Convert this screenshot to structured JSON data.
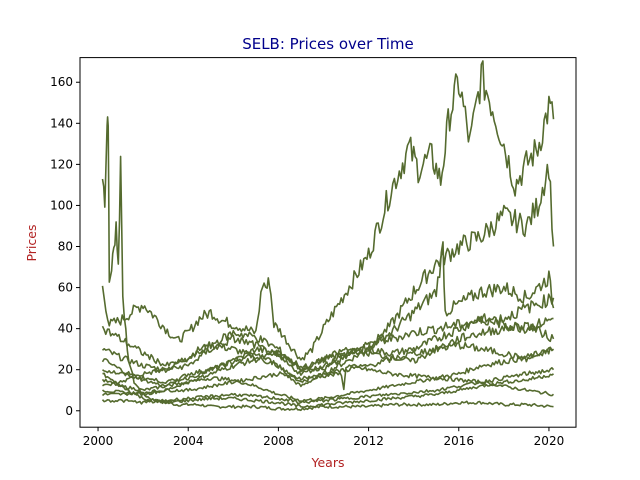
{
  "chart_data": {
    "type": "line",
    "title": "SELB: Prices over Time",
    "xlabel": "Years",
    "ylabel": "Prices",
    "title_color": "#00008b",
    "label_color": "#b22222",
    "line_color": "#556b2f",
    "xlim": [
      1999.2,
      2021.2
    ],
    "ylim": [
      -8,
      172
    ],
    "x_ticks": [
      2000,
      2004,
      2008,
      2012,
      2016,
      2020
    ],
    "x_tick_labels": [
      "2000",
      "2004",
      "2008",
      "2012",
      "2016",
      "2020"
    ],
    "y_ticks": [
      0,
      20,
      40,
      60,
      80,
      100,
      120,
      140,
      160
    ],
    "y_tick_labels": [
      "0",
      "20",
      "40",
      "60",
      "80",
      "100",
      "120",
      "140",
      "160"
    ],
    "grid": false,
    "legend": "none",
    "series": [
      {
        "x": [
          2000.2,
          2000.3,
          2000.4,
          2000.45,
          2000.5,
          2000.6,
          2000.7,
          2000.8,
          2000.9,
          2001.0,
          2001.1,
          2001.3,
          2001.6,
          2002.0,
          2002.5,
          2003.0,
          2003.5,
          2004.0,
          2004.5,
          2005.0,
          2005.5,
          2006.0,
          2007.0,
          2008.0,
          2009.0,
          2010.0,
          2011.0,
          2012.0,
          2013.0,
          2014.0,
          2015.0,
          2016.0,
          2017.0,
          2018.0,
          2019.0,
          2020.2
        ],
        "y": [
          113,
          104,
          140,
          146,
          62,
          70,
          78,
          92,
          70,
          123,
          58,
          28,
          14,
          8,
          5,
          4,
          3,
          3,
          3,
          2,
          2,
          2,
          2,
          1,
          1,
          2,
          2,
          2,
          3,
          3,
          3,
          4,
          4,
          3,
          3,
          2
        ]
      },
      {
        "x": [
          2000.2,
          2000.5,
          2001.0,
          2001.5,
          2002.0,
          2002.5,
          2003.0,
          2003.5,
          2004.0,
          2004.5,
          2005.0,
          2005.5,
          2006.0,
          2006.5,
          2007.0,
          2007.3,
          2007.5,
          2007.6,
          2007.8,
          2008.0,
          2008.5,
          2009.0,
          2009.5,
          2010.0,
          2011.0,
          2012.0,
          2013.0,
          2013.8,
          2014.2,
          2014.8,
          2015.2,
          2015.6,
          2016.0,
          2016.5,
          2017.0,
          2017.5,
          2018.0,
          2018.5,
          2019.0,
          2019.5,
          2020.0,
          2020.2
        ],
        "y": [
          60,
          42,
          44,
          48,
          52,
          46,
          40,
          34,
          38,
          45,
          48,
          44,
          42,
          40,
          38,
          62,
          60,
          64,
          42,
          40,
          32,
          25,
          30,
          40,
          58,
          76,
          108,
          128,
          118,
          124,
          112,
          145,
          160,
          130,
          163,
          148,
          130,
          110,
          120,
          128,
          148,
          142
        ]
      },
      {
        "x": [
          2000.2,
          2001.0,
          2002.0,
          2003.0,
          2004.0,
          2004.5,
          2005.0,
          2006.0,
          2007.0,
          2008.0,
          2008.5,
          2009.0,
          2010.0,
          2011.0,
          2012.0,
          2012.5,
          2013.0,
          2014.0,
          2015.0,
          2016.0,
          2017.0,
          2018.0,
          2019.0,
          2019.5,
          2020.0,
          2020.2
        ],
        "y": [
          30,
          26,
          22,
          20,
          26,
          30,
          32,
          30,
          26,
          22,
          16,
          12,
          18,
          24,
          30,
          36,
          42,
          58,
          72,
          80,
          85,
          95,
          90,
          100,
          120,
          80
        ]
      },
      {
        "x": [
          2000.2,
          2001.0,
          2002.0,
          2003.0,
          2004.0,
          2005.0,
          2006.0,
          2007.0,
          2008.0,
          2009.0,
          2010.0,
          2011.0,
          2012.0,
          2013.0,
          2014.0,
          2015.0,
          2015.3,
          2015.4,
          2016.0,
          2017.0,
          2018.0,
          2019.0,
          2020.0,
          2020.2
        ],
        "y": [
          15,
          12,
          10,
          12,
          18,
          20,
          24,
          30,
          28,
          22,
          20,
          26,
          32,
          38,
          48,
          58,
          80,
          48,
          52,
          58,
          60,
          55,
          65,
          50
        ]
      },
      {
        "x": [
          2000.2,
          2001.0,
          2002.0,
          2003.0,
          2004.0,
          2005.0,
          2006.0,
          2007.0,
          2008.0,
          2009.0,
          2010.0,
          2011.0,
          2012.0,
          2013.0,
          2014.0,
          2015.0,
          2016.0,
          2017.0,
          2018.0,
          2019.0,
          2020.2
        ],
        "y": [
          10,
          9,
          8,
          10,
          14,
          16,
          15,
          12,
          8,
          5,
          6,
          8,
          10,
          12,
          14,
          16,
          18,
          22,
          24,
          26,
          30
        ]
      },
      {
        "x": [
          2000.2,
          2001.0,
          2002.0,
          2003.0,
          2004.0,
          2005.0,
          2006.0,
          2007.0,
          2008.0,
          2009.0,
          2010.0,
          2011.0,
          2012.0,
          2013.0,
          2014.0,
          2015.0,
          2016.0,
          2017.0,
          2018.0,
          2019.0,
          2020.2
        ],
        "y": [
          25,
          20,
          15,
          12,
          14,
          18,
          22,
          25,
          28,
          20,
          25,
          28,
          30,
          28,
          30,
          35,
          40,
          45,
          42,
          40,
          45
        ]
      },
      {
        "x": [
          2000.2,
          2001.0,
          2002.0,
          2003.0,
          2004.0,
          2005.0,
          2006.0,
          2007.0,
          2008.0,
          2009.0,
          2010.0,
          2010.8,
          2010.9,
          2011.0,
          2012.0,
          2013.0,
          2014.0,
          2015.0,
          2016.0,
          2017.0,
          2018.0,
          2019.0,
          2020.2
        ],
        "y": [
          8,
          8,
          9,
          10,
          10,
          12,
          14,
          16,
          18,
          16,
          17,
          18,
          10,
          22,
          20,
          18,
          17,
          16,
          15,
          14,
          12,
          10,
          8
        ]
      },
      {
        "x": [
          2000.2,
          2001.0,
          2002.0,
          2003.0,
          2004.0,
          2005.0,
          2006.0,
          2007.0,
          2008.0,
          2009.0,
          2010.0,
          2011.0,
          2012.0,
          2013.0,
          2014.0,
          2015.0,
          2016.0,
          2017.0,
          2018.0,
          2019.0,
          2020.2
        ],
        "y": [
          40,
          35,
          28,
          22,
          25,
          32,
          38,
          36,
          30,
          20,
          25,
          30,
          28,
          26,
          24,
          30,
          32,
          30,
          28,
          25,
          30
        ]
      },
      {
        "x": [
          2000.2,
          2001.0,
          2002.0,
          2003.0,
          2004.0,
          2005.0,
          2006.0,
          2007.0,
          2008.0,
          2009.0,
          2010.0,
          2011.0,
          2012.0,
          2013.0,
          2014.0,
          2015.0,
          2016.0,
          2017.0,
          2018.0,
          2019.0,
          2020.2
        ],
        "y": [
          18,
          12,
          6,
          4,
          5,
          6,
          6,
          5,
          4,
          2,
          3,
          4,
          5,
          6,
          7,
          8,
          10,
          12,
          14,
          15,
          18
        ]
      },
      {
        "x": [
          2000.2,
          2001.0,
          2002.0,
          2003.0,
          2004.0,
          2005.0,
          2006.0,
          2007.0,
          2008.0,
          2009.0,
          2010.0,
          2011.0,
          2012.0,
          2013.0,
          2014.0,
          2015.0,
          2016.0,
          2017.0,
          2018.0,
          2019.0,
          2020.2
        ],
        "y": [
          12,
          14,
          18,
          20,
          22,
          30,
          35,
          32,
          26,
          18,
          22,
          28,
          32,
          35,
          38,
          40,
          42,
          44,
          45,
          50,
          55
        ]
      },
      {
        "x": [
          2000.2,
          2001.0,
          2002.0,
          2003.0,
          2004.0,
          2005.0,
          2006.0,
          2007.0,
          2008.0,
          2009.0,
          2010.0,
          2011.0,
          2012.0,
          2013.0,
          2014.0,
          2015.0,
          2016.0,
          2017.0,
          2018.0,
          2019.0,
          2020.2
        ],
        "y": [
          20,
          18,
          16,
          14,
          16,
          20,
          24,
          28,
          22,
          14,
          18,
          20,
          22,
          25,
          28,
          30,
          35,
          38,
          40,
          42,
          35
        ]
      },
      {
        "x": [
          2000.2,
          2001.0,
          2002.0,
          2003.0,
          2004.0,
          2005.0,
          2006.0,
          2007.0,
          2008.0,
          2009.0,
          2010.0,
          2011.0,
          2012.0,
          2013.0,
          2014.0,
          2015.0,
          2016.0,
          2017.0,
          2018.0,
          2019.0,
          2020.2
        ],
        "y": [
          5,
          5,
          4,
          5,
          6,
          7,
          8,
          7,
          6,
          4,
          5,
          6,
          7,
          8,
          9,
          10,
          12,
          14,
          16,
          18,
          20
        ]
      }
    ]
  }
}
